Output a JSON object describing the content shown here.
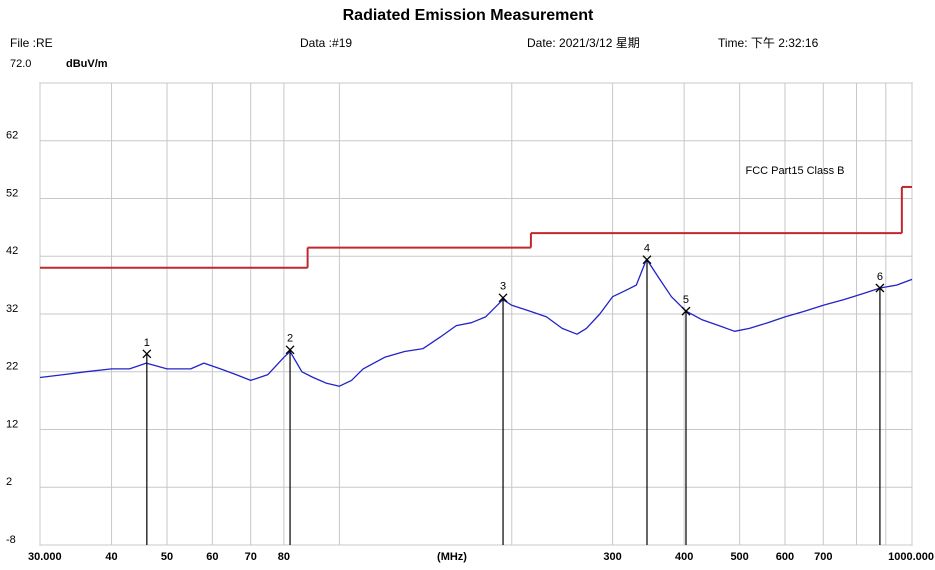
{
  "chart_data": {
    "type": "line",
    "title": "Radiated Emission Measurement",
    "file": "File :RE",
    "data_no": "Data :#19",
    "date": "Date: 2021/3/12 星期",
    "time": "Time: 下午 2:32:16",
    "y_label": "dBuV/m",
    "x_label": "(MHz)",
    "log_x": true,
    "grid": true,
    "xlim": [
      30,
      1000
    ],
    "ylim": [
      -8,
      72
    ],
    "yticks": [
      -8,
      2,
      12,
      22,
      32,
      42,
      52,
      62,
      {
        "value": 72,
        "label": "72.0"
      }
    ],
    "xticks": [
      {
        "value": 30,
        "label": "30.000"
      },
      40,
      50,
      60,
      70,
      80,
      300,
      400,
      500,
      600,
      700,
      {
        "value": 1000,
        "label": "1000.000"
      }
    ],
    "x_minor_grid": [
      100,
      200,
      800,
      900
    ],
    "scan": {
      "color": "#2323c8",
      "x": [
        30,
        33,
        36,
        40,
        43,
        46,
        50,
        55,
        58,
        62,
        66,
        70,
        75,
        80,
        82,
        86,
        90,
        95,
        100,
        105,
        110,
        120,
        130,
        140,
        150,
        160,
        170,
        180,
        193,
        200,
        215,
        230,
        245,
        260,
        270,
        285,
        300,
        315,
        330,
        344,
        360,
        380,
        403,
        430,
        460,
        490,
        520,
        560,
        600,
        650,
        700,
        760,
        820,
        880,
        940,
        1000
      ],
      "values": [
        21,
        21.5,
        22,
        22.5,
        22.5,
        23.5,
        22.5,
        22.5,
        23.5,
        22.5,
        21.5,
        20.5,
        21.5,
        24.5,
        25.5,
        22,
        21,
        20,
        19.5,
        20.5,
        22.5,
        24.5,
        25.5,
        26,
        28,
        30,
        30.5,
        31.5,
        34.5,
        33.5,
        32.5,
        31.5,
        29.5,
        28.5,
        29.5,
        32,
        35,
        36,
        37,
        41.5,
        38.5,
        35,
        32.5,
        31,
        30,
        29,
        29.5,
        30.5,
        31.5,
        32.5,
        33.5,
        34.5,
        35.5,
        36.5,
        37,
        38
      ]
    },
    "limit": {
      "name": "FCC Part15 Class B",
      "color": "#c0282d",
      "segments": [
        {
          "x": [
            30,
            88
          ],
          "value": 40
        },
        {
          "x": [
            88,
            216
          ],
          "value": 43.5
        },
        {
          "x": [
            216,
            960
          ],
          "value": 46
        },
        {
          "x": [
            960,
            1000
          ],
          "value": 54
        }
      ]
    },
    "markers": {
      "labels": [
        "1",
        "2",
        "3",
        "4",
        "5",
        "6"
      ],
      "x": [
        46.1,
        82.0,
        193.1,
        344.5,
        403.0,
        879.0
      ],
      "values": [
        25.1,
        25.8,
        34.8,
        41.4,
        32.5,
        36.5
      ]
    }
  }
}
